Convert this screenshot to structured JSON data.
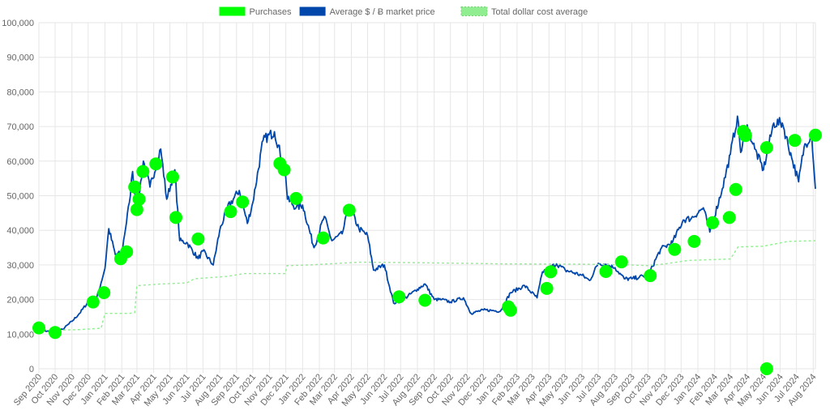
{
  "chart_data": {
    "type": "line",
    "legend": {
      "placement": "top-center",
      "entries": [
        {
          "key": "purchases",
          "label": "Purchases",
          "color": "#00ff00"
        },
        {
          "key": "price",
          "label": "Average $ / Ƀ market price",
          "color": "#0047ab"
        },
        {
          "key": "dca",
          "label": "Total dollar cost average",
          "color": "#90ee90"
        }
      ]
    },
    "y_axis": {
      "min": 0,
      "max": 100000,
      "step": 10000,
      "tick_labels": [
        "0",
        "10,000",
        "20,000",
        "30,000",
        "40,000",
        "50,000",
        "60,000",
        "70,000",
        "80,000",
        "90,000",
        "100,000"
      ]
    },
    "x_axis": {
      "start": "2020-09-01",
      "end": "2024-08-05",
      "tick_labels": [
        "Sep 2020",
        "Oct 2020",
        "Nov 2020",
        "Dec 2020",
        "Jan 2021",
        "Feb 2021",
        "Mar 2021",
        "Apr 2021",
        "May 2021",
        "Jun 2021",
        "Jul 2021",
        "Aug 2021",
        "Sep 2021",
        "Oct 2021",
        "Nov 2021",
        "Dec 2021",
        "Jan 2022",
        "Feb 2022",
        "Mar 2022",
        "Apr 2022",
        "May 2022",
        "Jun 2022",
        "Jul 2022",
        "Aug 2022",
        "Sep 2022",
        "Oct 2022",
        "Nov 2022",
        "Dec 2022",
        "Jan 2023",
        "Feb 2023",
        "Mar 2023",
        "Apr 2023",
        "May 2023",
        "Jun 2023",
        "Jul 2023",
        "Aug 2023",
        "Sep 2023",
        "Oct 2023",
        "Nov 2023",
        "Dec 2023",
        "Jan 2024",
        "Feb 2024",
        "Mar 2024",
        "Apr 2024",
        "May 2024",
        "Jun 2024",
        "Jul 2024",
        "Aug 2024"
      ]
    },
    "grid": true,
    "series": [
      {
        "key": "price",
        "name": "Average $ / Ƀ market price",
        "color": "#0047ab",
        "style": "solid",
        "points": [
          [
            "2020-09-01",
            11900
          ],
          [
            "2020-09-15",
            10800
          ],
          [
            "2020-10-01",
            10700
          ],
          [
            "2020-10-15",
            11400
          ],
          [
            "2020-11-01",
            13700
          ],
          [
            "2020-11-15",
            16000
          ],
          [
            "2020-12-01",
            19300
          ],
          [
            "2020-12-15",
            19400
          ],
          [
            "2021-01-01",
            29000
          ],
          [
            "2021-01-08",
            40500
          ],
          [
            "2021-01-20",
            33000
          ],
          [
            "2021-02-01",
            33500
          ],
          [
            "2021-02-15",
            48000
          ],
          [
            "2021-02-21",
            57000
          ],
          [
            "2021-03-01",
            45500
          ],
          [
            "2021-03-13",
            60000
          ],
          [
            "2021-03-25",
            52500
          ],
          [
            "2021-04-14",
            63500
          ],
          [
            "2021-04-25",
            49000
          ],
          [
            "2021-05-10",
            57500
          ],
          [
            "2021-05-19",
            37000
          ],
          [
            "2021-06-01",
            36500
          ],
          [
            "2021-06-22",
            31800
          ],
          [
            "2021-07-01",
            34000
          ],
          [
            "2021-07-20",
            30000
          ],
          [
            "2021-08-01",
            40000
          ],
          [
            "2021-08-15",
            46500
          ],
          [
            "2021-09-06",
            51500
          ],
          [
            "2021-09-21",
            42000
          ],
          [
            "2021-10-01",
            48000
          ],
          [
            "2021-10-20",
            66000
          ],
          [
            "2021-11-10",
            68500
          ],
          [
            "2021-11-30",
            57000
          ],
          [
            "2021-12-04",
            49000
          ],
          [
            "2021-12-20",
            46500
          ],
          [
            "2022-01-01",
            47300
          ],
          [
            "2022-01-22",
            35000
          ],
          [
            "2022-02-10",
            44000
          ],
          [
            "2022-02-24",
            37000
          ],
          [
            "2022-03-15",
            39000
          ],
          [
            "2022-03-28",
            47000
          ],
          [
            "2022-04-15",
            40500
          ],
          [
            "2022-05-01",
            38500
          ],
          [
            "2022-05-12",
            28500
          ],
          [
            "2022-06-01",
            30000
          ],
          [
            "2022-06-18",
            19000
          ],
          [
            "2022-07-01",
            19500
          ],
          [
            "2022-08-01",
            23000
          ],
          [
            "2022-08-15",
            24500
          ],
          [
            "2022-09-01",
            20000
          ],
          [
            "2022-09-15",
            20000
          ],
          [
            "2022-10-01",
            19300
          ],
          [
            "2022-10-25",
            20500
          ],
          [
            "2022-11-08",
            16000
          ],
          [
            "2022-12-01",
            17000
          ],
          [
            "2022-12-20",
            16800
          ],
          [
            "2023-01-01",
            16600
          ],
          [
            "2023-01-20",
            22000
          ],
          [
            "2023-02-15",
            24000
          ],
          [
            "2023-03-10",
            20500
          ],
          [
            "2023-03-20",
            28000
          ],
          [
            "2023-04-15",
            30300
          ],
          [
            "2023-05-01",
            28500
          ],
          [
            "2023-06-01",
            27000
          ],
          [
            "2023-06-15",
            25500
          ],
          [
            "2023-07-01",
            30500
          ],
          [
            "2023-07-15",
            30200
          ],
          [
            "2023-08-01",
            29200
          ],
          [
            "2023-08-18",
            26000
          ],
          [
            "2023-09-01",
            26000
          ],
          [
            "2023-09-15",
            26500
          ],
          [
            "2023-10-01",
            27000
          ],
          [
            "2023-10-24",
            34500
          ],
          [
            "2023-11-15",
            36500
          ],
          [
            "2023-12-05",
            43000
          ],
          [
            "2023-12-20",
            43500
          ],
          [
            "2024-01-11",
            46500
          ],
          [
            "2024-01-23",
            39500
          ],
          [
            "2024-02-15",
            52000
          ],
          [
            "2024-03-01",
            62000
          ],
          [
            "2024-03-14",
            73000
          ],
          [
            "2024-03-20",
            62500
          ],
          [
            "2024-04-01",
            70500
          ],
          [
            "2024-04-15",
            63500
          ],
          [
            "2024-05-01",
            57500
          ],
          [
            "2024-05-20",
            71000
          ],
          [
            "2024-06-05",
            71000
          ],
          [
            "2024-06-24",
            60000
          ],
          [
            "2024-07-05",
            54000
          ],
          [
            "2024-07-15",
            64000
          ],
          [
            "2024-07-29",
            68000
          ],
          [
            "2024-08-05",
            52000
          ]
        ]
      },
      {
        "key": "dca",
        "name": "Total dollar cost average",
        "color": "#90ee90",
        "style": "dashed",
        "points": [
          [
            "2020-09-01",
            11500
          ],
          [
            "2020-10-01",
            11000
          ],
          [
            "2020-10-15",
            11200
          ],
          [
            "2020-11-15",
            11300
          ],
          [
            "2020-12-25",
            11700
          ],
          [
            "2021-01-01",
            16000
          ],
          [
            "2021-02-15",
            16000
          ],
          [
            "2021-02-25",
            16200
          ],
          [
            "2021-03-01",
            24000
          ],
          [
            "2021-04-15",
            24500
          ],
          [
            "2021-06-01",
            24800
          ],
          [
            "2021-06-15",
            26000
          ],
          [
            "2021-08-15",
            26700
          ],
          [
            "2021-09-15",
            27500
          ],
          [
            "2021-11-30",
            27500
          ],
          [
            "2021-12-03",
            29800
          ],
          [
            "2022-01-15",
            30000
          ],
          [
            "2022-04-15",
            30800
          ],
          [
            "2022-07-01",
            30700
          ],
          [
            "2022-12-01",
            30400
          ],
          [
            "2023-01-01",
            30300
          ],
          [
            "2023-06-01",
            30200
          ],
          [
            "2023-09-01",
            30000
          ],
          [
            "2023-10-01",
            29800
          ],
          [
            "2023-11-01",
            30300
          ],
          [
            "2023-12-15",
            31300
          ],
          [
            "2024-03-01",
            31700
          ],
          [
            "2024-03-15",
            35200
          ],
          [
            "2024-05-01",
            35400
          ],
          [
            "2024-06-15",
            36800
          ],
          [
            "2024-08-05",
            37000
          ]
        ]
      }
    ],
    "purchases": {
      "name": "Purchases",
      "color": "#00ff00",
      "points": [
        [
          "2020-09-01",
          11800
        ],
        [
          "2020-10-01",
          10500
        ],
        [
          "2020-12-10",
          19300
        ],
        [
          "2020-12-30",
          22000
        ],
        [
          "2021-01-30",
          31800
        ],
        [
          "2021-02-10",
          33800
        ],
        [
          "2021-02-25",
          52500
        ],
        [
          "2021-03-01",
          46000
        ],
        [
          "2021-03-05",
          49000
        ],
        [
          "2021-03-12",
          57000
        ],
        [
          "2021-04-05",
          59200
        ],
        [
          "2021-05-06",
          55400
        ],
        [
          "2021-05-12",
          43700
        ],
        [
          "2021-06-22",
          37500
        ],
        [
          "2021-08-21",
          45400
        ],
        [
          "2021-09-12",
          48200
        ],
        [
          "2021-11-20",
          59300
        ],
        [
          "2021-11-28",
          57500
        ],
        [
          "2021-12-20",
          49200
        ],
        [
          "2022-02-08",
          37800
        ],
        [
          "2022-03-28",
          45800
        ],
        [
          "2022-06-28",
          20800
        ],
        [
          "2022-08-15",
          19800
        ],
        [
          "2023-01-16",
          17900
        ],
        [
          "2023-01-20",
          16900
        ],
        [
          "2023-03-28",
          23200
        ],
        [
          "2023-04-04",
          28000
        ],
        [
          "2023-07-15",
          28100
        ],
        [
          "2023-08-13",
          30900
        ],
        [
          "2023-10-05",
          26900
        ],
        [
          "2023-11-19",
          34500
        ],
        [
          "2023-12-25",
          36800
        ],
        [
          "2024-01-28",
          42200
        ],
        [
          "2024-02-28",
          43700
        ],
        [
          "2024-03-11",
          51800
        ],
        [
          "2024-03-25",
          68600
        ],
        [
          "2024-03-29",
          67400
        ],
        [
          "2024-05-07",
          63900
        ],
        [
          "2024-05-07",
          0
        ],
        [
          "2024-06-28",
          66000
        ],
        [
          "2024-08-05",
          67500
        ]
      ]
    }
  }
}
